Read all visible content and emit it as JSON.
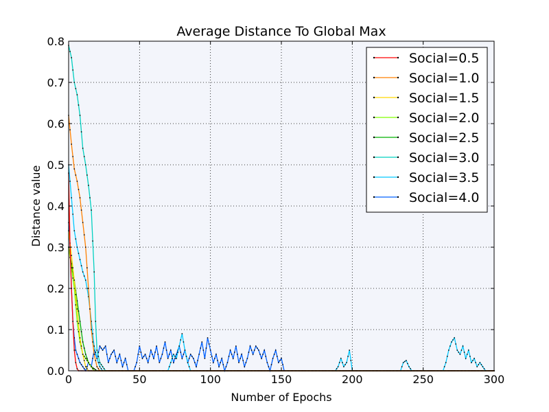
{
  "chart_data": {
    "type": "line",
    "title": "Average Distance To Global Max",
    "xlabel": "Number of Epochs",
    "ylabel": "Distance value",
    "xlim": [
      0,
      300
    ],
    "ylim": [
      0,
      0.8
    ],
    "xticks": [
      "0",
      "50",
      "100",
      "150",
      "200",
      "250",
      "300"
    ],
    "yticks": [
      "0.0",
      "0.1",
      "0.2",
      "0.3",
      "0.4",
      "0.5",
      "0.6",
      "0.7",
      "0.8"
    ],
    "grid": true,
    "grid_style": "dotted",
    "legend_position": "top-right",
    "background": "#f3f5fb",
    "marker": "small black dots",
    "series": [
      {
        "name": "Social=0.5",
        "color": "#ff0000",
        "points": [
          [
            0,
            0.48
          ],
          [
            1,
            0.3
          ],
          [
            2,
            0.2
          ],
          [
            3,
            0.12
          ],
          [
            4,
            0.05
          ],
          [
            5,
            0.02
          ],
          [
            6,
            0.005
          ],
          [
            7,
            0.0
          ],
          [
            300,
            0.0
          ]
        ]
      },
      {
        "name": "Social=1.0",
        "color": "#ff8000",
        "points": [
          [
            0,
            0.62
          ],
          [
            2,
            0.55
          ],
          [
            4,
            0.49
          ],
          [
            6,
            0.46
          ],
          [
            8,
            0.42
          ],
          [
            10,
            0.36
          ],
          [
            12,
            0.3
          ],
          [
            14,
            0.2
          ],
          [
            16,
            0.1
          ],
          [
            18,
            0.04
          ],
          [
            20,
            0.01
          ],
          [
            22,
            0.0
          ],
          [
            300,
            0.0
          ]
        ]
      },
      {
        "name": "Social=1.5",
        "color": "#ffd700",
        "points": [
          [
            0,
            0.34
          ],
          [
            2,
            0.28
          ],
          [
            4,
            0.22
          ],
          [
            6,
            0.15
          ],
          [
            8,
            0.08
          ],
          [
            10,
            0.04
          ],
          [
            12,
            0.01
          ],
          [
            14,
            0.0
          ],
          [
            300,
            0.0
          ]
        ]
      },
      {
        "name": "Social=2.0",
        "color": "#80ff00",
        "points": [
          [
            0,
            0.3
          ],
          [
            2,
            0.25
          ],
          [
            4,
            0.2
          ],
          [
            6,
            0.12
          ],
          [
            8,
            0.07
          ],
          [
            10,
            0.04
          ],
          [
            12,
            0.03
          ],
          [
            14,
            0.02
          ],
          [
            16,
            0.01
          ],
          [
            18,
            0.0
          ],
          [
            300,
            0.0
          ]
        ]
      },
      {
        "name": "Social=2.5",
        "color": "#00b000",
        "points": [
          [
            0,
            0.3
          ],
          [
            2,
            0.26
          ],
          [
            4,
            0.22
          ],
          [
            6,
            0.17
          ],
          [
            8,
            0.12
          ],
          [
            10,
            0.07
          ],
          [
            12,
            0.04
          ],
          [
            14,
            0.02
          ],
          [
            16,
            0.01
          ],
          [
            18,
            0.005
          ],
          [
            20,
            0.0
          ],
          [
            300,
            0.0
          ]
        ]
      },
      {
        "name": "Social=3.0",
        "color": "#00d0c0",
        "points": [
          [
            0,
            0.79
          ],
          [
            2,
            0.76
          ],
          [
            4,
            0.7
          ],
          [
            6,
            0.67
          ],
          [
            8,
            0.62
          ],
          [
            10,
            0.54
          ],
          [
            12,
            0.5
          ],
          [
            14,
            0.45
          ],
          [
            16,
            0.39
          ],
          [
            18,
            0.24
          ],
          [
            19,
            0.12
          ],
          [
            20,
            0.05
          ],
          [
            22,
            0.02
          ],
          [
            24,
            0.01
          ],
          [
            26,
            0.0
          ],
          [
            300,
            0.0
          ]
        ]
      },
      {
        "name": "Social=3.5",
        "color": "#00c8ff",
        "points": [
          [
            0,
            0.5
          ],
          [
            2,
            0.42
          ],
          [
            4,
            0.34
          ],
          [
            6,
            0.3
          ],
          [
            8,
            0.27
          ],
          [
            10,
            0.24
          ],
          [
            12,
            0.22
          ],
          [
            14,
            0.18
          ],
          [
            16,
            0.12
          ],
          [
            18,
            0.06
          ],
          [
            20,
            0.03
          ],
          [
            22,
            0.01
          ],
          [
            24,
            0.0
          ],
          [
            70,
            0.0
          ],
          [
            72,
            0.02
          ],
          [
            74,
            0.04
          ],
          [
            76,
            0.03
          ],
          [
            78,
            0.06
          ],
          [
            80,
            0.09
          ],
          [
            82,
            0.05
          ],
          [
            84,
            0.02
          ],
          [
            86,
            0.0
          ],
          [
            188,
            0.0
          ],
          [
            190,
            0.01
          ],
          [
            192,
            0.03
          ],
          [
            194,
            0.01
          ],
          [
            196,
            0.02
          ],
          [
            198,
            0.05
          ],
          [
            200,
            0.0
          ],
          [
            234,
            0.0
          ],
          [
            236,
            0.02
          ],
          [
            238,
            0.025
          ],
          [
            240,
            0.01
          ],
          [
            242,
            0.0
          ],
          [
            264,
            0.0
          ],
          [
            266,
            0.02
          ],
          [
            268,
            0.05
          ],
          [
            270,
            0.07
          ],
          [
            272,
            0.08
          ],
          [
            274,
            0.05
          ],
          [
            276,
            0.04
          ],
          [
            278,
            0.06
          ],
          [
            280,
            0.03
          ],
          [
            282,
            0.05
          ],
          [
            284,
            0.02
          ],
          [
            286,
            0.03
          ],
          [
            288,
            0.01
          ],
          [
            290,
            0.02
          ],
          [
            292,
            0.01
          ],
          [
            294,
            0.0
          ],
          [
            300,
            0.0
          ]
        ]
      },
      {
        "name": "Social=4.0",
        "color": "#0060ff",
        "points": [
          [
            0,
            0.36
          ],
          [
            1,
            0.3
          ],
          [
            2,
            0.2
          ],
          [
            3,
            0.12
          ],
          [
            4,
            0.08
          ],
          [
            5,
            0.05
          ],
          [
            6,
            0.04
          ],
          [
            8,
            0.02
          ],
          [
            10,
            0.01
          ],
          [
            12,
            0.0
          ],
          [
            14,
            0.02
          ],
          [
            16,
            0.01
          ],
          [
            18,
            0.05
          ],
          [
            20,
            0.03
          ],
          [
            22,
            0.06
          ],
          [
            24,
            0.05
          ],
          [
            26,
            0.06
          ],
          [
            28,
            0.02
          ],
          [
            30,
            0.04
          ],
          [
            32,
            0.05
          ],
          [
            34,
            0.02
          ],
          [
            36,
            0.04
          ],
          [
            38,
            0.01
          ],
          [
            40,
            0.03
          ],
          [
            42,
            0.0
          ],
          [
            46,
            0.0
          ],
          [
            48,
            0.02
          ],
          [
            50,
            0.06
          ],
          [
            52,
            0.03
          ],
          [
            54,
            0.04
          ],
          [
            56,
            0.02
          ],
          [
            58,
            0.05
          ],
          [
            60,
            0.03
          ],
          [
            62,
            0.06
          ],
          [
            64,
            0.02
          ],
          [
            66,
            0.04
          ],
          [
            68,
            0.07
          ],
          [
            70,
            0.03
          ],
          [
            72,
            0.05
          ],
          [
            74,
            0.02
          ],
          [
            76,
            0.04
          ],
          [
            78,
            0.06
          ],
          [
            80,
            0.03
          ],
          [
            82,
            0.05
          ],
          [
            84,
            0.02
          ],
          [
            86,
            0.04
          ],
          [
            88,
            0.03
          ],
          [
            90,
            0.01
          ],
          [
            92,
            0.04
          ],
          [
            94,
            0.07
          ],
          [
            96,
            0.03
          ],
          [
            98,
            0.08
          ],
          [
            100,
            0.05
          ],
          [
            102,
            0.02
          ],
          [
            104,
            0.04
          ],
          [
            106,
            0.01
          ],
          [
            108,
            0.03
          ],
          [
            110,
            0.0
          ],
          [
            112,
            0.02
          ],
          [
            114,
            0.05
          ],
          [
            116,
            0.03
          ],
          [
            118,
            0.06
          ],
          [
            120,
            0.02
          ],
          [
            122,
            0.04
          ],
          [
            124,
            0.01
          ],
          [
            126,
            0.03
          ],
          [
            128,
            0.06
          ],
          [
            130,
            0.04
          ],
          [
            132,
            0.06
          ],
          [
            134,
            0.05
          ],
          [
            136,
            0.03
          ],
          [
            138,
            0.05
          ],
          [
            140,
            0.02
          ],
          [
            142,
            0.0
          ],
          [
            144,
            0.03
          ],
          [
            146,
            0.05
          ],
          [
            148,
            0.02
          ],
          [
            150,
            0.03
          ],
          [
            152,
            0.0
          ],
          [
            300,
            0.0
          ]
        ]
      }
    ]
  }
}
